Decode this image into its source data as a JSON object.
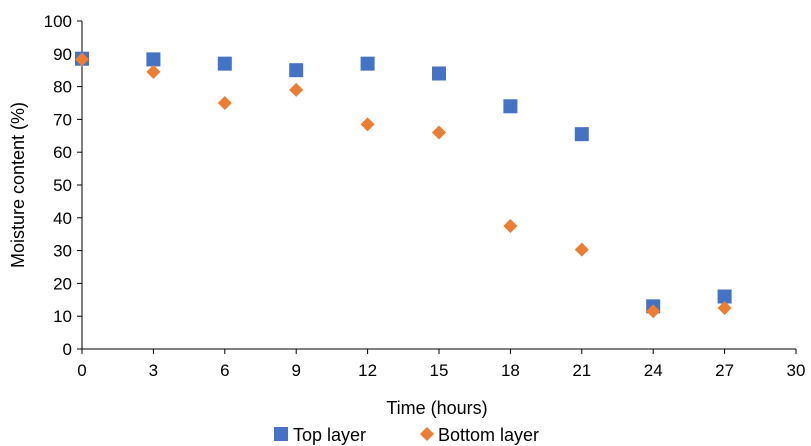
{
  "chart_data": {
    "type": "scatter",
    "xlabel": "Time (hours)",
    "ylabel": "Moisture content  (%)",
    "xlim": [
      0,
      30
    ],
    "ylim": [
      0,
      100
    ],
    "xticks": [
      0,
      3,
      6,
      9,
      12,
      15,
      18,
      21,
      24,
      27,
      30
    ],
    "yticks": [
      0,
      10,
      20,
      30,
      40,
      50,
      60,
      70,
      80,
      90,
      100
    ],
    "grid": false,
    "legend_position": "bottom",
    "series": [
      {
        "name": "Top layer",
        "marker": "square",
        "color": "#4472C4",
        "x": [
          0,
          3,
          6,
          9,
          12,
          15,
          18,
          21,
          24,
          27
        ],
        "y": [
          88.5,
          88.3,
          87,
          85,
          87,
          84,
          74,
          65.5,
          13,
          16
        ]
      },
      {
        "name": "Bottom layer",
        "marker": "diamond",
        "color": "#ED7D31",
        "x": [
          0,
          3,
          6,
          9,
          12,
          15,
          18,
          21,
          24,
          27
        ],
        "y": [
          88.3,
          84.5,
          75,
          79,
          68.5,
          66,
          37.5,
          30.3,
          11.5,
          12.5
        ]
      }
    ]
  }
}
